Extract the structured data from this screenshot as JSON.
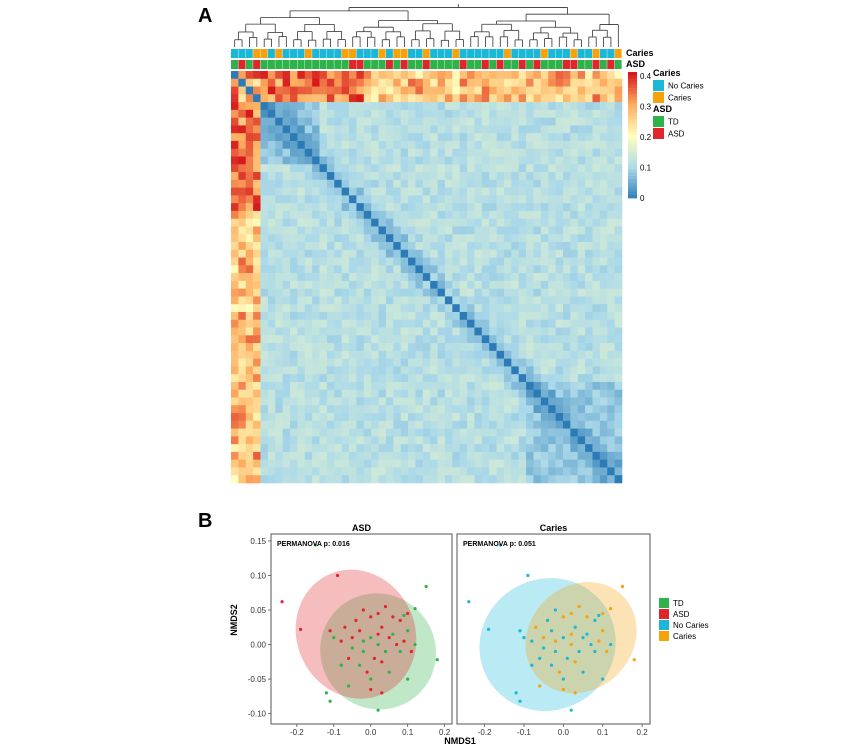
{
  "panel_a_label": "A",
  "panel_b_label": "B",
  "chart_data": [
    {
      "type": "heatmap",
      "n_samples": 53,
      "annotation_rows": [
        "Caries",
        "ASD"
      ],
      "annotations": {
        "Caries": [
          "No Caries",
          "No Caries",
          "No Caries",
          "Caries",
          "Caries",
          "No Caries",
          "Caries",
          "No Caries",
          "No Caries",
          "No Caries",
          "Caries",
          "No Caries",
          "No Caries",
          "No Caries",
          "No Caries",
          "Caries",
          "Caries",
          "No Caries",
          "No Caries",
          "No Caries",
          "Caries",
          "No Caries",
          "Caries",
          "Caries",
          "No Caries",
          "No Caries",
          "Caries",
          "No Caries",
          "No Caries",
          "No Caries",
          "Caries",
          "No Caries",
          "No Caries",
          "No Caries",
          "No Caries",
          "No Caries",
          "No Caries",
          "Caries",
          "No Caries",
          "No Caries",
          "No Caries",
          "No Caries",
          "Caries",
          "No Caries",
          "No Caries",
          "No Caries",
          "Caries",
          "No Caries",
          "No Caries",
          "Caries",
          "No Caries",
          "No Caries",
          "Caries"
        ],
        "ASD": [
          "TD",
          "ASD",
          "TD",
          "ASD",
          "TD",
          "TD",
          "TD",
          "TD",
          "TD",
          "TD",
          "TD",
          "TD",
          "TD",
          "TD",
          "TD",
          "TD",
          "ASD",
          "ASD",
          "TD",
          "TD",
          "TD",
          "ASD",
          "TD",
          "ASD",
          "TD",
          "TD",
          "ASD",
          "TD",
          "TD",
          "TD",
          "TD",
          "ASD",
          "TD",
          "TD",
          "ASD",
          "TD",
          "ASD",
          "TD",
          "TD",
          "ASD",
          "TD",
          "ASD",
          "TD",
          "TD",
          "TD",
          "ASD",
          "ASD",
          "TD",
          "TD",
          "ASD",
          "TD",
          "ASD",
          "TD"
        ]
      },
      "color_scale": {
        "min": 0,
        "max": 0.4,
        "ticks": [
          "0.4",
          "0.3",
          "0.2",
          "0.1",
          "0"
        ],
        "colors": [
          "#2c7bb6",
          "#abd9e9",
          "#ffffbf",
          "#fdae61",
          "#d7191c"
        ]
      },
      "legend": {
        "Caries": {
          "title": "Caries",
          "items": [
            {
              "label": "No  Caries",
              "color": "#1ab8d6"
            },
            {
              "label": "Caries",
              "color": "#f5a20c"
            }
          ]
        },
        "ASD": {
          "title": "ASD",
          "items": [
            {
              "label": "TD",
              "color": "#2db34a"
            },
            {
              "label": "ASD",
              "color": "#e0262a"
            }
          ]
        }
      }
    },
    {
      "type": "scatter",
      "title": "ASD",
      "annotation": "PERMANOVA p: 0.016",
      "xlabel": "NMDS1",
      "ylabel": "NMDS2",
      "xlim": [
        -0.27,
        0.22
      ],
      "ylim": [
        -0.115,
        0.16
      ],
      "x_ticks": [
        "-0.2",
        "-0.1",
        "0.0",
        "0.1",
        "0.2"
      ],
      "y_ticks": [
        "0.15",
        "0.10",
        "0.05",
        "0.00",
        "-0.05",
        "-0.10"
      ],
      "series": [
        {
          "name": "TD",
          "color": "#2db34a",
          "points": [
            [
              -0.15,
              0.144
            ],
            [
              0.15,
              0.084
            ],
            [
              0.12,
              0.052
            ],
            [
              0.09,
              0.042
            ],
            [
              -0.1,
              0.01
            ],
            [
              -0.05,
              -0.005
            ],
            [
              0.0,
              0.01
            ],
            [
              0.02,
              0.0
            ],
            [
              -0.02,
              -0.01
            ],
            [
              0.04,
              -0.01
            ],
            [
              0.06,
              0.015
            ],
            [
              0.1,
              0.02
            ],
            [
              -0.08,
              -0.03
            ],
            [
              -0.03,
              -0.03
            ],
            [
              0.05,
              -0.04
            ],
            [
              0.1,
              -0.05
            ],
            [
              0.18,
              -0.022
            ],
            [
              -0.12,
              -0.07
            ],
            [
              0.0,
              -0.05
            ],
            [
              -0.02,
              0.005
            ],
            [
              0.08,
              -0.01
            ],
            [
              -0.06,
              -0.06
            ],
            [
              0.02,
              -0.095
            ],
            [
              -0.11,
              -0.082
            ],
            [
              0.12,
              0.0
            ]
          ]
        },
        {
          "name": "ASD",
          "color": "#e0262a",
          "points": [
            [
              -0.24,
              0.062
            ],
            [
              -0.09,
              0.1
            ],
            [
              -0.19,
              0.022
            ],
            [
              -0.11,
              0.02
            ],
            [
              -0.08,
              0.005
            ],
            [
              -0.03,
              0.02
            ],
            [
              0.0,
              0.04
            ],
            [
              -0.02,
              0.05
            ],
            [
              0.03,
              0.025
            ],
            [
              0.05,
              0.01
            ],
            [
              0.08,
              0.035
            ],
            [
              0.1,
              0.045
            ],
            [
              -0.06,
              -0.02
            ],
            [
              0.01,
              -0.02
            ],
            [
              0.03,
              -0.025
            ],
            [
              0.07,
              0.0
            ],
            [
              -0.04,
              0.035
            ],
            [
              0.02,
              0.015
            ],
            [
              0.0,
              -0.065
            ],
            [
              0.03,
              -0.07
            ],
            [
              -0.01,
              -0.04
            ],
            [
              0.06,
              0.04
            ],
            [
              0.09,
              0.005
            ],
            [
              -0.05,
              0.01
            ],
            [
              0.04,
              0.055
            ],
            [
              0.02,
              0.045
            ],
            [
              -0.07,
              0.025
            ],
            [
              0.11,
              -0.01
            ]
          ]
        }
      ],
      "ellipses": [
        {
          "name": "TD",
          "color": "#2db34a",
          "center": [
            0.02,
            -0.01
          ],
          "rx": 0.155,
          "ry": 0.085,
          "angle_deg": 42
        },
        {
          "name": "ASD",
          "color": "#e0262a",
          "center": [
            -0.04,
            0.015
          ],
          "rx": 0.16,
          "ry": 0.095,
          "angle_deg": 25
        }
      ]
    },
    {
      "type": "scatter",
      "title": "Caries",
      "annotation": "PERMANOVA p: 0.051",
      "xlabel": "NMDS1",
      "xlim": [
        -0.27,
        0.22
      ],
      "ylim": [
        -0.115,
        0.16
      ],
      "x_ticks": [
        "-0.2",
        "-0.1",
        "0.0",
        "0.1",
        "0.2"
      ],
      "series": [
        {
          "name": "No Caries",
          "color": "#1ab8d6",
          "points": [
            [
              -0.16,
              0.144
            ],
            [
              -0.24,
              0.062
            ],
            [
              -0.09,
              0.1
            ],
            [
              -0.19,
              0.022
            ],
            [
              -0.11,
              0.02
            ],
            [
              -0.08,
              0.005
            ],
            [
              -0.03,
              0.02
            ],
            [
              -0.02,
              0.05
            ],
            [
              0.03,
              0.025
            ],
            [
              0.05,
              0.01
            ],
            [
              0.08,
              0.035
            ],
            [
              -0.1,
              0.01
            ],
            [
              -0.05,
              -0.005
            ],
            [
              0.0,
              0.01
            ],
            [
              -0.02,
              -0.01
            ],
            [
              0.04,
              -0.01
            ],
            [
              0.06,
              0.015
            ],
            [
              -0.08,
              -0.03
            ],
            [
              -0.03,
              -0.03
            ],
            [
              0.05,
              -0.04
            ],
            [
              0.1,
              -0.05
            ],
            [
              -0.12,
              -0.07
            ],
            [
              0.0,
              -0.05
            ],
            [
              0.02,
              -0.095
            ],
            [
              -0.11,
              -0.082
            ],
            [
              0.09,
              0.042
            ],
            [
              0.12,
              0.0
            ],
            [
              0.01,
              -0.02
            ],
            [
              -0.06,
              -0.02
            ],
            [
              0.08,
              -0.01
            ],
            [
              0.07,
              0.0
            ],
            [
              -0.04,
              0.035
            ]
          ]
        },
        {
          "name": "Caries",
          "color": "#f5a20c",
          "points": [
            [
              0.15,
              0.084
            ],
            [
              0.12,
              0.052
            ],
            [
              0.1,
              0.045
            ],
            [
              0.18,
              -0.022
            ],
            [
              0.03,
              -0.025
            ],
            [
              0.0,
              -0.065
            ],
            [
              0.03,
              -0.07
            ],
            [
              -0.01,
              -0.04
            ],
            [
              0.06,
              0.04
            ],
            [
              0.09,
              0.005
            ],
            [
              -0.05,
              0.01
            ],
            [
              0.04,
              0.055
            ],
            [
              0.02,
              0.045
            ],
            [
              -0.07,
              0.025
            ],
            [
              0.11,
              -0.01
            ],
            [
              -0.02,
              0.005
            ],
            [
              -0.06,
              -0.06
            ],
            [
              0.1,
              0.02
            ],
            [
              0.02,
              0.015
            ],
            [
              0.0,
              0.04
            ],
            [
              0.02,
              0.0
            ]
          ]
        }
      ],
      "ellipses": [
        {
          "name": "No Caries",
          "color": "#1ab8d6",
          "center": [
            -0.04,
            0.0
          ],
          "rx": 0.175,
          "ry": 0.095,
          "angle_deg": 30
        },
        {
          "name": "Caries",
          "color": "#f5a20c",
          "center": [
            0.045,
            0.01
          ],
          "rx": 0.15,
          "ry": 0.075,
          "angle_deg": 45
        }
      ]
    }
  ],
  "legend_b": {
    "items": [
      {
        "label": "TD",
        "color": "#2db34a"
      },
      {
        "label": "ASD",
        "color": "#e0262a"
      },
      {
        "label": "No  Caries",
        "color": "#1ab8d6"
      },
      {
        "label": "Caries",
        "color": "#f5a20c"
      }
    ]
  }
}
